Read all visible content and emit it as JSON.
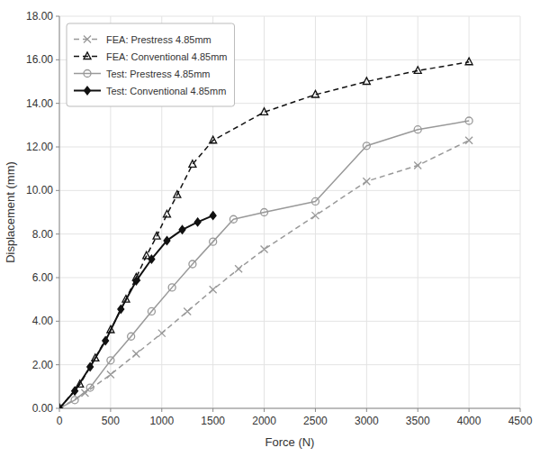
{
  "chart_data": {
    "type": "line",
    "xlabel": "Force (N)",
    "ylabel": "Displacement (mm)",
    "series": [
      {
        "name": "FEA: Prestress 4.85mm",
        "color": "#999999",
        "line_style": "dashed",
        "marker": "x",
        "x": [
          0,
          250,
          500,
          750,
          1000,
          1250,
          1500,
          1750,
          2000,
          2500,
          3000,
          3500,
          4000
        ],
        "values": [
          0.0,
          0.7,
          1.55,
          2.5,
          3.45,
          4.45,
          5.45,
          6.4,
          7.3,
          8.85,
          10.42,
          11.15,
          12.3
        ]
      },
      {
        "name": "FEA: Conventional 4.85mm",
        "color": "#111111",
        "line_style": "dashed",
        "marker": "triangle",
        "x": [
          0,
          200,
          350,
          500,
          650,
          750,
          850,
          950,
          1050,
          1150,
          1300,
          1500,
          2000,
          2500,
          3000,
          3500,
          4000
        ],
        "values": [
          0.0,
          1.1,
          2.3,
          3.6,
          5.0,
          6.0,
          7.0,
          7.9,
          8.9,
          9.8,
          11.2,
          12.3,
          13.6,
          14.4,
          15.0,
          15.5,
          15.9
        ]
      },
      {
        "name": "Test: Prestress 4.85mm",
        "color": "#999999",
        "line_style": "solid",
        "marker": "circle",
        "x": [
          0,
          150,
          300,
          500,
          700,
          900,
          1100,
          1300,
          1500,
          1700,
          2000,
          2500,
          3000,
          3500,
          4000
        ],
        "values": [
          0.0,
          0.38,
          0.95,
          2.2,
          3.3,
          4.45,
          5.55,
          6.62,
          7.65,
          8.68,
          9.0,
          9.5,
          12.05,
          12.8,
          13.2
        ]
      },
      {
        "name": "Test: Conventional 4.85mm",
        "color": "#111111",
        "line_style": "solid",
        "marker": "diamond",
        "x": [
          0,
          150,
          300,
          450,
          600,
          750,
          900,
          1050,
          1200,
          1350,
          1500
        ],
        "values": [
          0.0,
          0.8,
          1.9,
          3.1,
          4.55,
          5.85,
          6.85,
          7.7,
          8.2,
          8.55,
          8.85
        ]
      }
    ],
    "xlim": [
      0,
      4500
    ],
    "ylim": [
      0,
      18
    ],
    "xticks": [
      0,
      500,
      1000,
      1500,
      2000,
      2500,
      3000,
      3500,
      4000,
      4500
    ],
    "yticks": [
      {
        "value": 0,
        "label": "0.00"
      },
      {
        "value": 2,
        "label": "2.00"
      },
      {
        "value": 4,
        "label": "4.00"
      },
      {
        "value": 6,
        "label": "6.00"
      },
      {
        "value": 8,
        "label": "8.00"
      },
      {
        "value": 10,
        "label": "10.00"
      },
      {
        "value": 12,
        "label": "12.00"
      },
      {
        "value": 14,
        "label": "14.00"
      },
      {
        "value": 16,
        "label": "16.00"
      },
      {
        "value": 18,
        "label": "18.00"
      }
    ],
    "grid": true,
    "legend": "upper left"
  }
}
